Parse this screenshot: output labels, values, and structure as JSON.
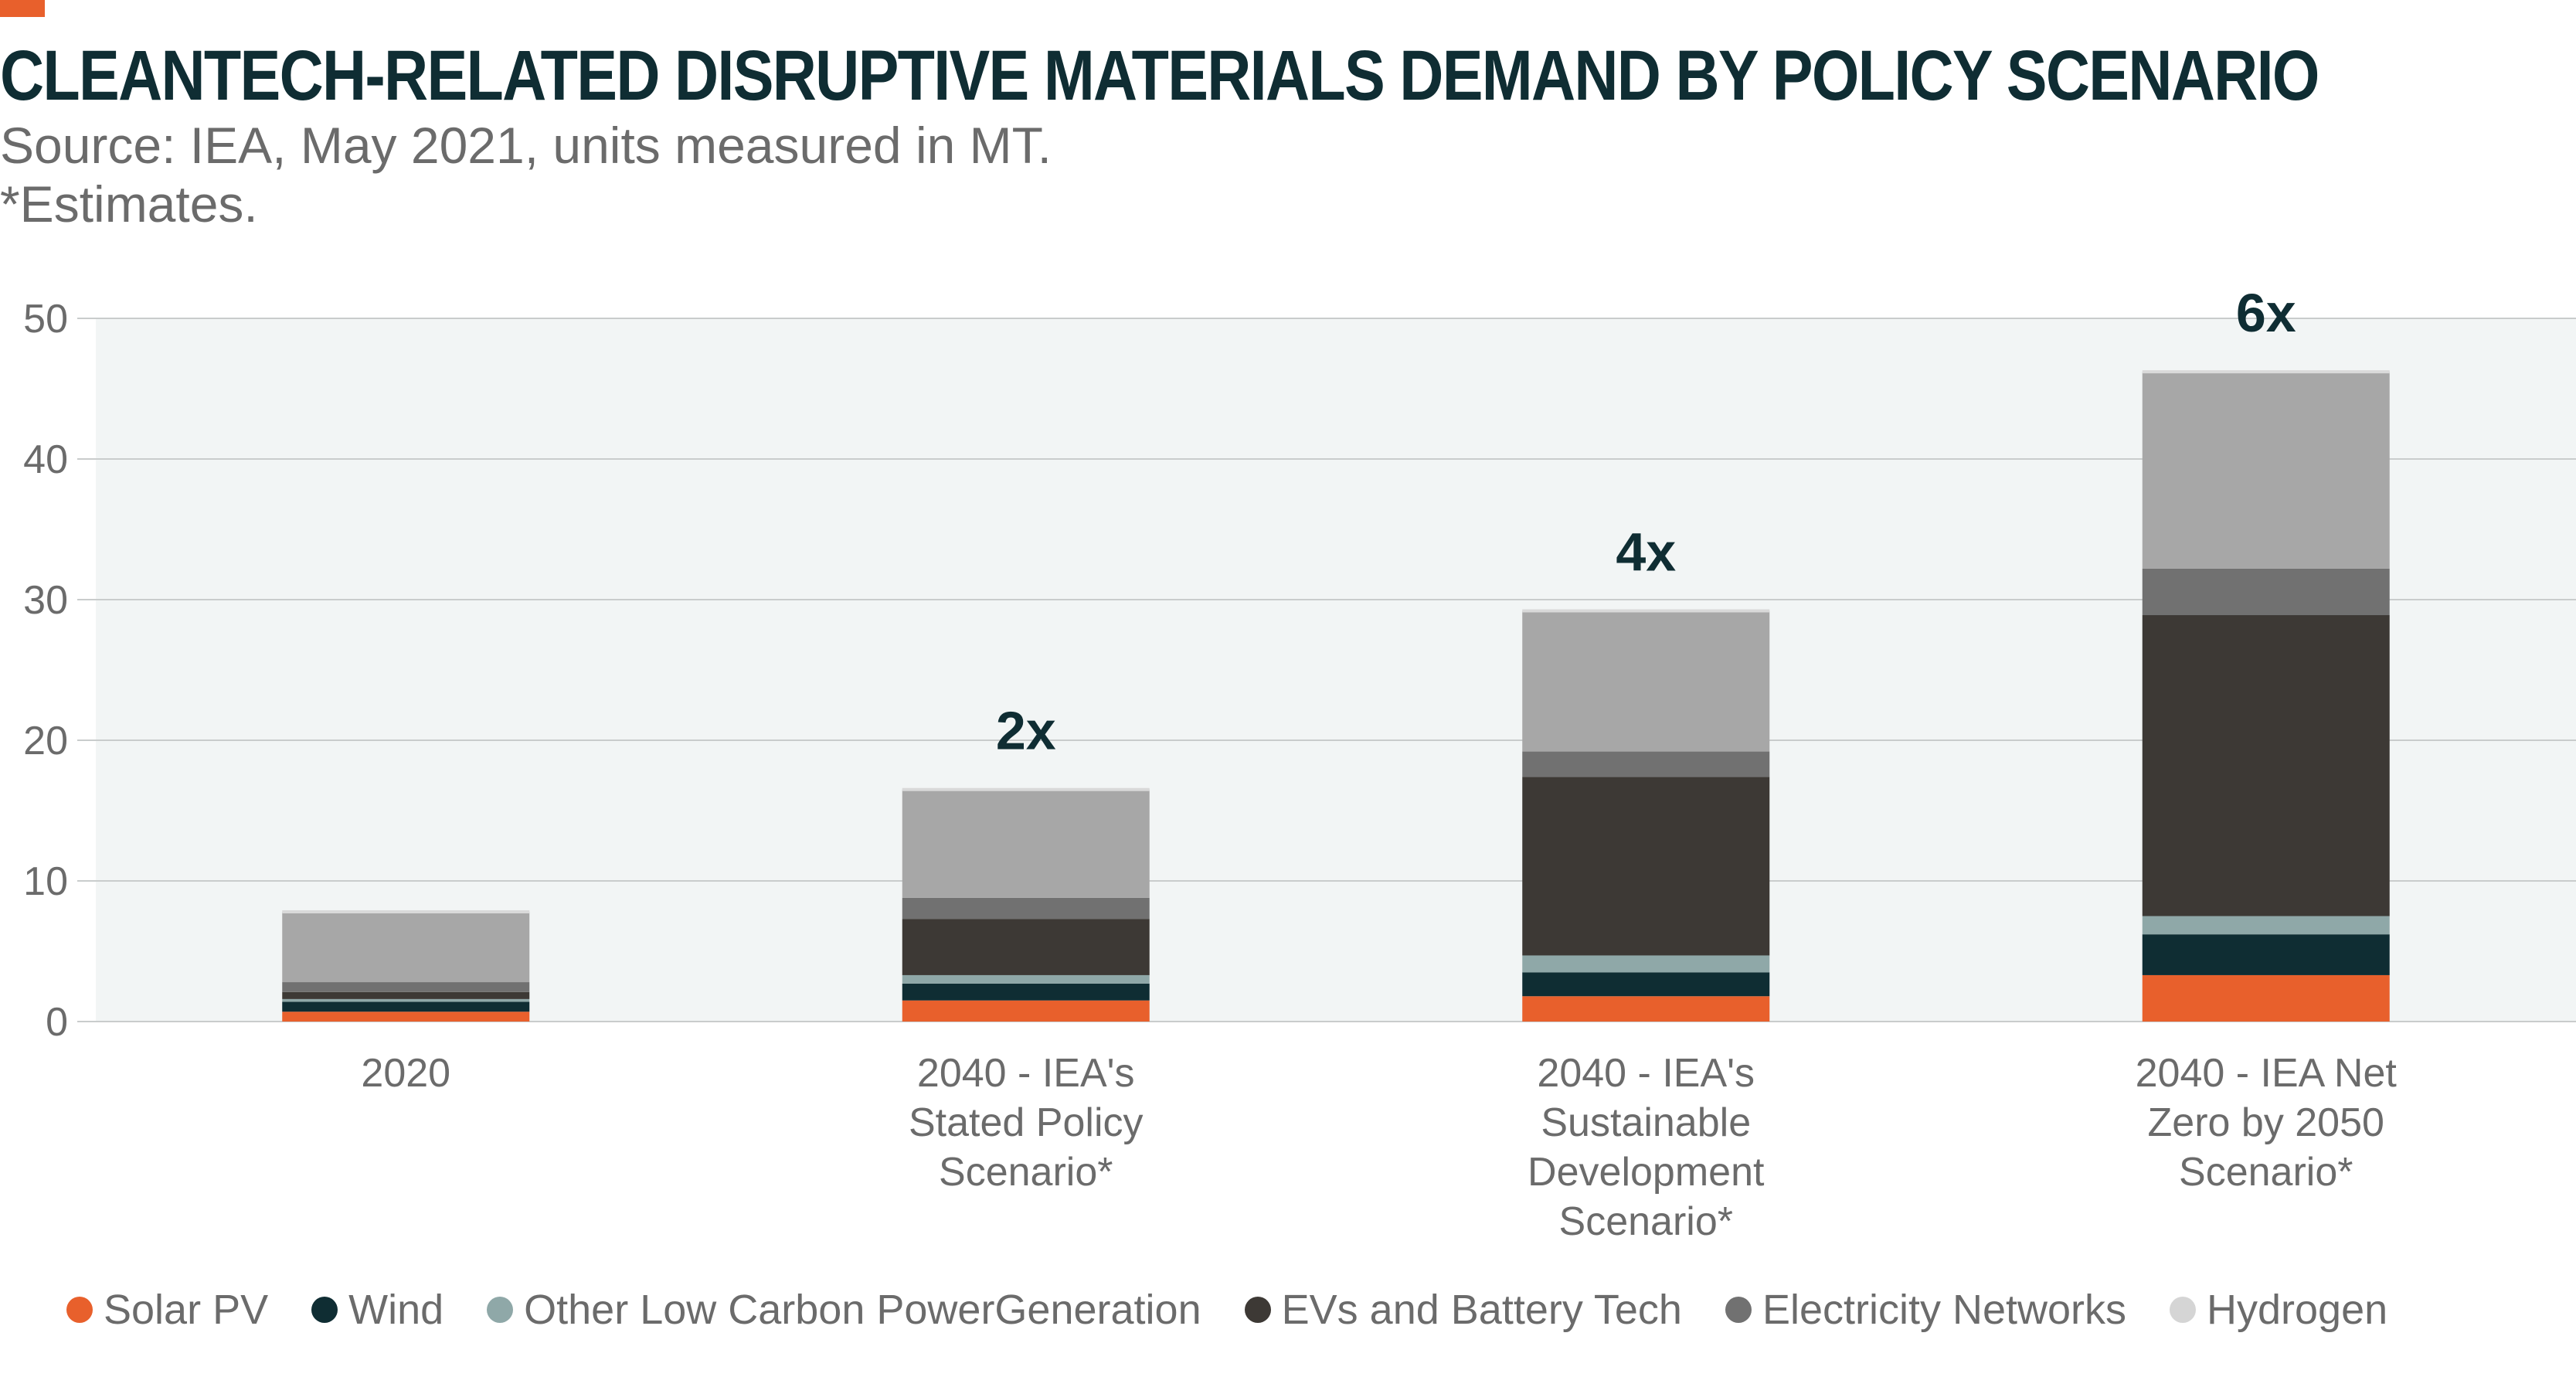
{
  "header": {
    "title": "CLEANTECH-RELATED DISRUPTIVE MATERIALS DEMAND BY POLICY SCENARIO",
    "source": "Source: IEA, May 2021, units measured in MT.",
    "note": "*Estimates."
  },
  "colors": {
    "accent": "#e8602c",
    "plot_background": "#f2f5f5",
    "gridline": "#c9cccc",
    "multiplier_text": "#0f2d33"
  },
  "chart_data": {
    "type": "bar",
    "stacked": true,
    "title": "CLEANTECH-RELATED DISRUPTIVE MATERIALS DEMAND BY POLICY SCENARIO",
    "xlabel": "",
    "ylabel": "",
    "ylim": [
      0,
      50
    ],
    "yticks": [
      0,
      10,
      20,
      30,
      40,
      50
    ],
    "grid": true,
    "legend_position": "bottom",
    "categories": [
      [
        "2020"
      ],
      [
        "2040 - IEA's",
        "Stated Policy",
        "Scenario*"
      ],
      [
        "2040 - IEA's",
        "Sustainable",
        "Development",
        "Scenario*"
      ],
      [
        "2040 - IEA Net",
        "Zero by 2050",
        "Scenario*"
      ]
    ],
    "series": [
      {
        "name": "Solar PV",
        "color": "#e8602c",
        "values": [
          0.7,
          1.5,
          1.8,
          3.3
        ]
      },
      {
        "name": "Wind",
        "color": "#0f2d33",
        "values": [
          0.7,
          1.2,
          1.7,
          2.9
        ]
      },
      {
        "name": "Other Low Carbon PowerGeneration",
        "color": "#8fa8a8",
        "values": [
          0.2,
          0.6,
          1.2,
          1.3
        ]
      },
      {
        "name": "EVs and Battery Tech",
        "color": "#3d3935",
        "values": [
          0.5,
          4.0,
          12.7,
          21.4
        ]
      },
      {
        "name": "Electricity Networks",
        "color": "#717171",
        "values": [
          0.7,
          1.5,
          1.8,
          3.3
        ]
      },
      {
        "name": "Hydrogen",
        "color": "#a7a7a7",
        "values": [
          5.0,
          7.7,
          10.0,
          14.0
        ]
      }
    ],
    "totals": [
      7.8,
      16.5,
      29.2,
      46.3
    ],
    "annotations": [
      "",
      "2x",
      "4x",
      "6x"
    ]
  }
}
